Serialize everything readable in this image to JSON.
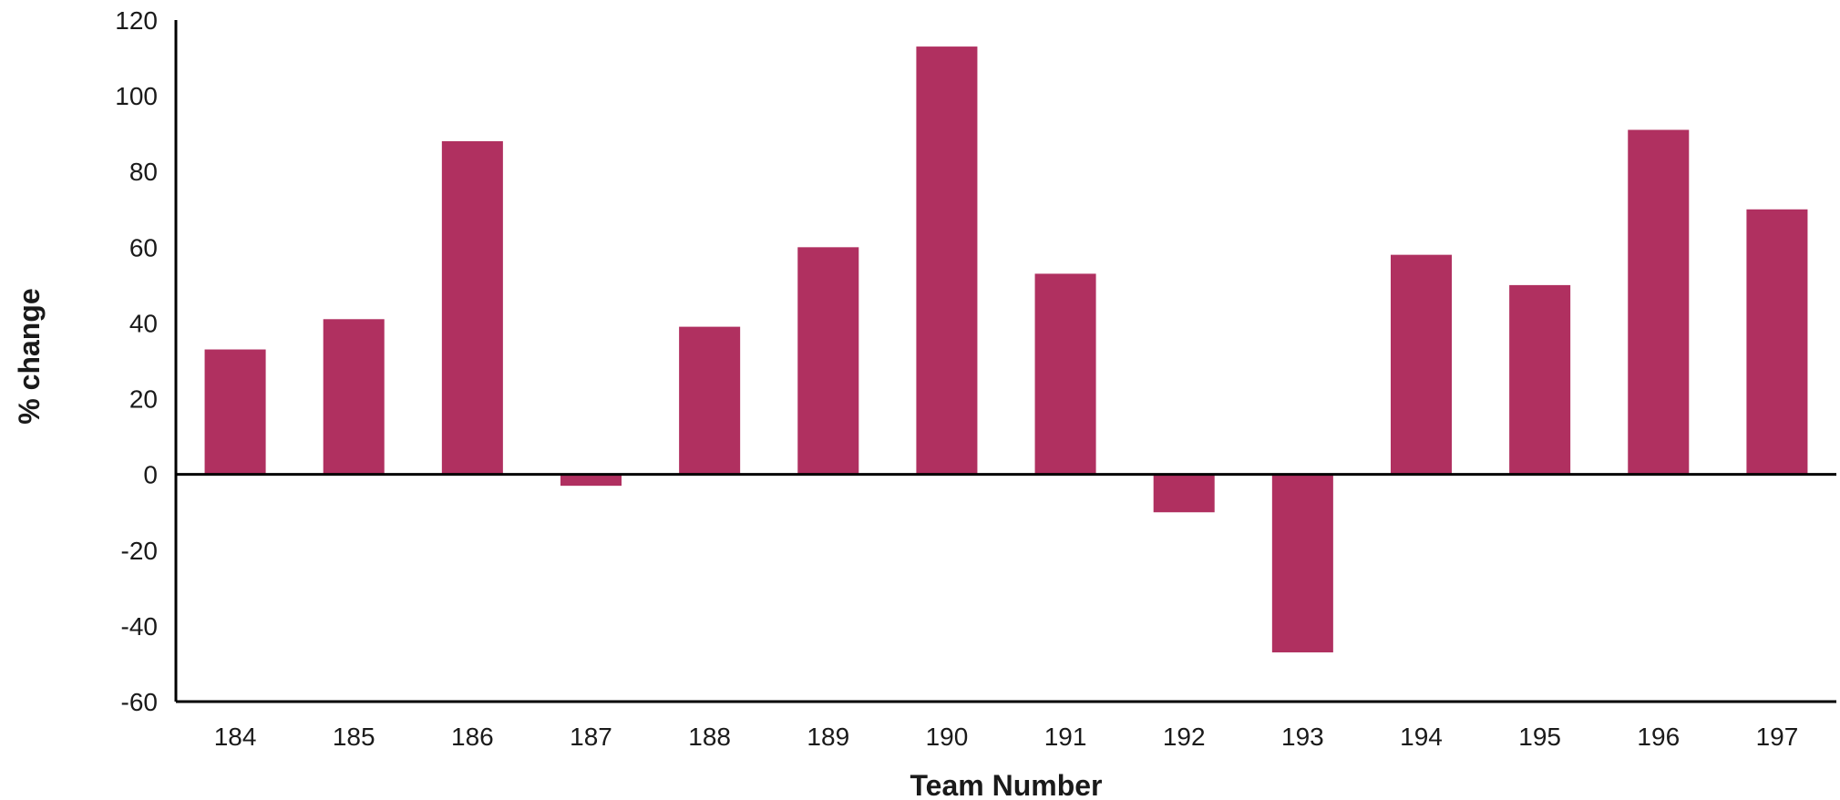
{
  "chart_data": {
    "type": "bar",
    "xlabel": "Team Number",
    "ylabel": "% change",
    "ylim": [
      -60,
      120
    ],
    "yticks": [
      120,
      100,
      80,
      60,
      40,
      20,
      0,
      -20,
      -40,
      -60
    ],
    "categories": [
      "184",
      "185",
      "186",
      "187",
      "188",
      "189",
      "190",
      "191",
      "192",
      "193",
      "194",
      "195",
      "196",
      "197"
    ],
    "values": [
      33,
      41,
      88,
      -3,
      39,
      60,
      113,
      53,
      -10,
      -47,
      58,
      50,
      91,
      70
    ],
    "bar_color": "#b03060",
    "grid": false,
    "legend": "none"
  }
}
